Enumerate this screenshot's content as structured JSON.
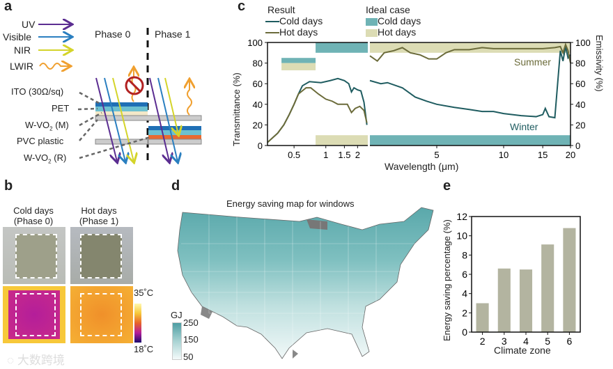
{
  "panel_labels": {
    "a": "a",
    "b": "b",
    "c": "c",
    "d": "d",
    "e": "e"
  },
  "panel_a": {
    "legend": [
      "UV",
      "Visible",
      "NIR",
      "LWIR"
    ],
    "phase0": "Phase 0",
    "phase1": "Phase 1",
    "layers": [
      "ITO (30Ω/sq)",
      "PET",
      "W-VO",
      "PVC plastic",
      "W-VO"
    ],
    "layer_sub": [
      "2",
      "2"
    ],
    "layer_suffix": [
      "(M)",
      "(R)"
    ],
    "colors": {
      "uv": "#5b2d91",
      "visible": "#2a7fc0",
      "nir": "#d4d42a",
      "lwir": "#f0a030",
      "no_sign": "#b22222"
    }
  },
  "panel_b": {
    "col1": [
      "Cold days",
      "(Phase 0)"
    ],
    "col2": [
      "Hot days",
      "(Phase 1)"
    ],
    "scale_max": "35˚C",
    "scale_min": "18˚C",
    "watermark": "大数跨境"
  },
  "panel_d": {
    "title": "Energy saving map for windows",
    "legend_unit": "GJ",
    "legend_ticks": [
      "250",
      "150",
      "50"
    ],
    "colors": {
      "high": "#4e9ea3",
      "mid": "#a9d3d3",
      "low": "#f4fafa",
      "na": "#888888"
    }
  },
  "chart_data": [
    {
      "type": "line",
      "id": "c",
      "legend_result_title": "Result",
      "legend_ideal_title": "Ideal case",
      "xlabel": "Wavelength (μm)",
      "ylabel": "Transmittance (%)",
      "ylabel_right": "Emissivity (%)",
      "xscale": "log (broken axis)",
      "xlim_left": [
        0.28,
        2.5
      ],
      "xlim_right": [
        2.5,
        20
      ],
      "ylim": [
        0,
        100
      ],
      "xticks": [
        "0.5",
        "1",
        "1.5",
        "2",
        "5",
        "10",
        "15",
        "20"
      ],
      "xtick_values": [
        0.5,
        1,
        1.5,
        2,
        5,
        10,
        15,
        20
      ],
      "yticks": [
        "0",
        "20",
        "40",
        "60",
        "80",
        "100"
      ],
      "annotations": [
        "Summer",
        "Winter"
      ],
      "series": [
        {
          "name": "Cold days",
          "color": "#1f5c60",
          "left": [
            [
              0.28,
              3
            ],
            [
              0.35,
              12
            ],
            [
              0.4,
              20
            ],
            [
              0.45,
              30
            ],
            [
              0.5,
              40
            ],
            [
              0.55,
              50
            ],
            [
              0.6,
              58
            ],
            [
              0.7,
              62
            ],
            [
              0.9,
              61
            ],
            [
              1.1,
              63
            ],
            [
              1.3,
              65
            ],
            [
              1.5,
              63
            ],
            [
              1.65,
              60
            ],
            [
              1.75,
              52
            ],
            [
              1.85,
              56
            ],
            [
              2.0,
              54
            ],
            [
              2.15,
              53
            ],
            [
              2.3,
              42
            ],
            [
              2.45,
              20
            ]
          ],
          "right": [
            [
              2.5,
              63
            ],
            [
              2.8,
              60
            ],
            [
              3,
              61
            ],
            [
              3.5,
              56
            ],
            [
              4,
              47
            ],
            [
              4.5,
              43
            ],
            [
              5,
              40
            ],
            [
              6,
              37
            ],
            [
              7,
              35
            ],
            [
              8,
              33
            ],
            [
              9,
              33
            ],
            [
              10,
              31
            ],
            [
              12,
              29
            ],
            [
              14,
              28
            ],
            [
              15,
              30
            ],
            [
              15.4,
              36
            ],
            [
              16,
              28
            ],
            [
              17,
              27
            ],
            [
              17.5,
              60
            ],
            [
              18,
              92
            ],
            [
              18.5,
              82
            ],
            [
              19,
              96
            ],
            [
              19.5,
              85
            ],
            [
              20,
              88
            ]
          ]
        },
        {
          "name": "Hot days",
          "color": "#6b6b3a",
          "left": [
            [
              0.28,
              3
            ],
            [
              0.35,
              12
            ],
            [
              0.4,
              20
            ],
            [
              0.45,
              30
            ],
            [
              0.5,
              40
            ],
            [
              0.55,
              50
            ],
            [
              0.65,
              56
            ],
            [
              0.72,
              56
            ],
            [
              0.85,
              50
            ],
            [
              1.0,
              45
            ],
            [
              1.15,
              43
            ],
            [
              1.3,
              40
            ],
            [
              1.6,
              40
            ],
            [
              1.75,
              32
            ],
            [
              1.9,
              36
            ],
            [
              2.1,
              38
            ],
            [
              2.3,
              34
            ],
            [
              2.45,
              22
            ]
          ],
          "right": [
            [
              2.5,
              87
            ],
            [
              2.7,
              82
            ],
            [
              2.9,
              90
            ],
            [
              3.2,
              92
            ],
            [
              3.5,
              95
            ],
            [
              3.8,
              90
            ],
            [
              4.2,
              88
            ],
            [
              4.6,
              84
            ],
            [
              5,
              84
            ],
            [
              5.5,
              90
            ],
            [
              6,
              93
            ],
            [
              7,
              93
            ],
            [
              8,
              95
            ],
            [
              9,
              94
            ],
            [
              10,
              94
            ],
            [
              12,
              94
            ],
            [
              15,
              94
            ],
            [
              17,
              95
            ],
            [
              18,
              96
            ],
            [
              18.5,
              90
            ],
            [
              19,
              98
            ],
            [
              19.5,
              92
            ],
            [
              20,
              80
            ]
          ]
        }
      ],
      "ideal_case": [
        {
          "name": "Cold days",
          "color": "#6fb3b5",
          "regions": [
            [
              0.38,
              0.8,
              80,
              85
            ],
            [
              0.8,
              2.5,
              90,
              100
            ],
            [
              2.5,
              20,
              0,
              10
            ]
          ]
        },
        {
          "name": "Hot days",
          "color": "#dcdcb4",
          "regions": [
            [
              0.38,
              0.8,
              73,
              80
            ],
            [
              0.8,
              2.5,
              0,
              10
            ],
            [
              2.5,
              20,
              90,
              100
            ]
          ]
        }
      ]
    },
    {
      "type": "bar",
      "id": "e",
      "categories": [
        "2",
        "3",
        "4",
        "5",
        "6"
      ],
      "values": [
        3.0,
        6.6,
        6.5,
        9.1,
        10.8
      ],
      "xlabel": "Climate zone",
      "ylabel": "Energy saving percentage (%)",
      "ylim": [
        0,
        12
      ],
      "yticks": [
        "0",
        "2",
        "4",
        "6",
        "8",
        "10",
        "12"
      ],
      "bar_color": "#b3b4a0"
    }
  ]
}
